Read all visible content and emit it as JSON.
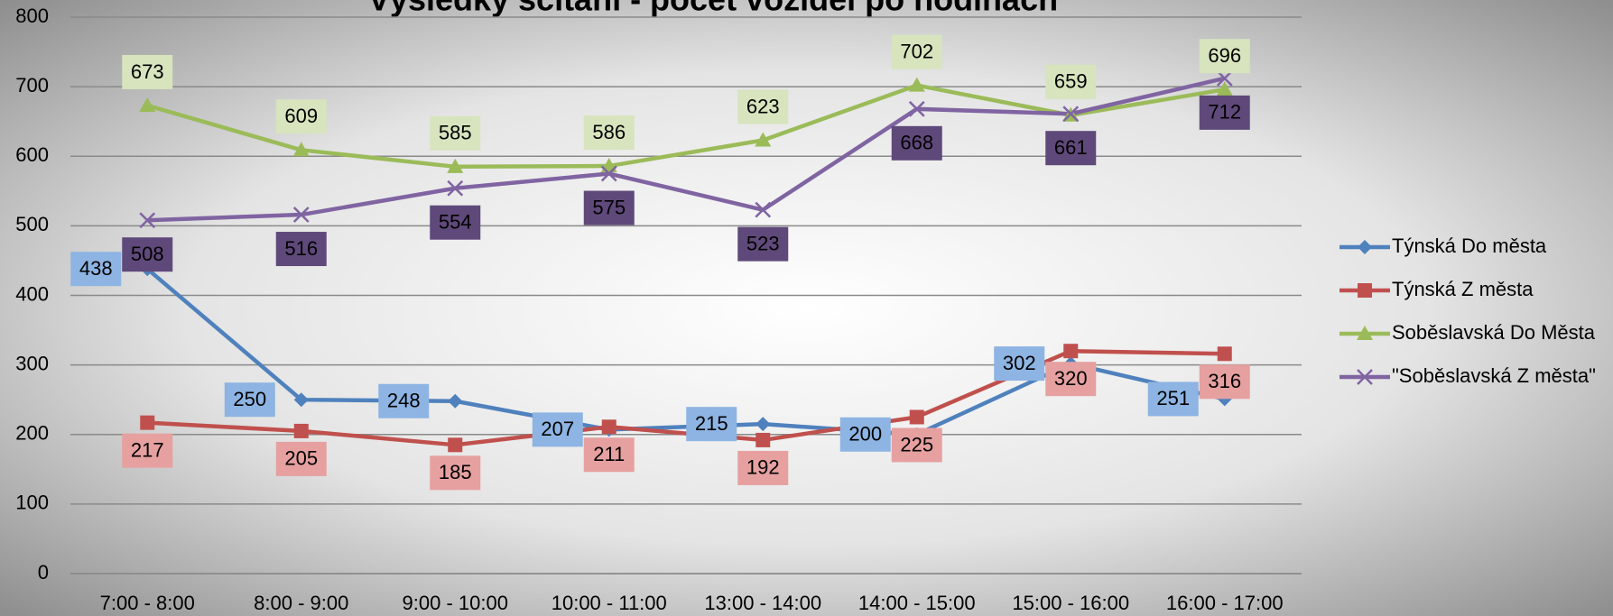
{
  "chart_data": {
    "type": "line",
    "title": "Výsledky sčítání - počet vozidel po hodinách",
    "categories": [
      "7:00 - 8:00",
      "8:00 - 9:00",
      "9:00 - 10:00",
      "10:00 - 11:00",
      "13:00 - 14:00",
      "14:00 - 15:00",
      "15:00 - 16:00",
      "16:00 - 17:00"
    ],
    "series": [
      {
        "name": "Týnská Do města",
        "color": "#4f81bd",
        "values": [
          438,
          250,
          248,
          207,
          215,
          200,
          302,
          251
        ]
      },
      {
        "name": "Týnská Z města",
        "color": "#c0504d",
        "values": [
          217,
          205,
          185,
          211,
          192,
          225,
          320,
          316
        ]
      },
      {
        "name": "Soběslavská Do Města",
        "color": "#9bbb59",
        "values": [
          673,
          609,
          585,
          586,
          623,
          702,
          659,
          696
        ]
      },
      {
        "name": "\"Soběslavská Z města\"",
        "color": "#8064a2",
        "values": [
          508,
          516,
          554,
          575,
          523,
          668,
          661,
          712
        ]
      }
    ],
    "ylim": [
      0,
      800
    ],
    "yticks": [
      0,
      100,
      200,
      300,
      400,
      500,
      600,
      700,
      800
    ],
    "grid": true,
    "legend": "right"
  }
}
